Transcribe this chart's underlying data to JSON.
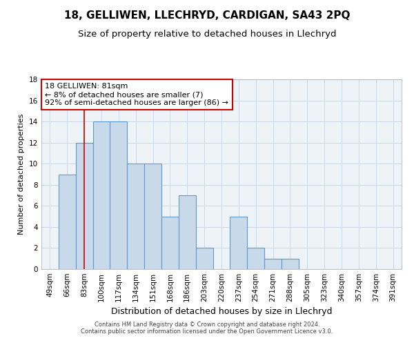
{
  "title1": "18, GELLIWEN, LLECHRYD, CARDIGAN, SA43 2PQ",
  "title2": "Size of property relative to detached houses in Llechryd",
  "xlabel": "Distribution of detached houses by size in Llechryd",
  "ylabel": "Number of detached properties",
  "footnote1": "Contains HM Land Registry data © Crown copyright and database right 2024.",
  "footnote2": "Contains public sector information licensed under the Open Government Licence v3.0.",
  "categories": [
    "49sqm",
    "66sqm",
    "83sqm",
    "100sqm",
    "117sqm",
    "134sqm",
    "151sqm",
    "168sqm",
    "186sqm",
    "203sqm",
    "220sqm",
    "237sqm",
    "254sqm",
    "271sqm",
    "288sqm",
    "305sqm",
    "323sqm",
    "340sqm",
    "357sqm",
    "374sqm",
    "391sqm"
  ],
  "values": [
    0,
    9,
    12,
    14,
    14,
    10,
    10,
    5,
    7,
    2,
    0,
    5,
    2,
    1,
    1,
    0,
    0,
    0,
    0,
    0,
    0
  ],
  "bar_color": "#c8d9ea",
  "bar_edge_color": "#5b9bd5",
  "red_line_index": 2,
  "annotation_text": "18 GELLIWEN: 81sqm\n← 8% of detached houses are smaller (7)\n92% of semi-detached houses are larger (86) →",
  "annotation_box_color": "#ffffff",
  "annotation_box_edge": "#cc0000",
  "annotation_text_color": "#000000",
  "vline_color": "#cc0000",
  "ylim": [
    0,
    18
  ],
  "yticks": [
    0,
    2,
    4,
    6,
    8,
    10,
    12,
    14,
    16,
    18
  ],
  "grid_color": "#c8d8ea",
  "background_color": "#eef3f8",
  "title1_fontsize": 11,
  "title2_fontsize": 9.5,
  "xlabel_fontsize": 9,
  "ylabel_fontsize": 8,
  "tick_fontsize": 7.5,
  "annotation_fontsize": 8
}
